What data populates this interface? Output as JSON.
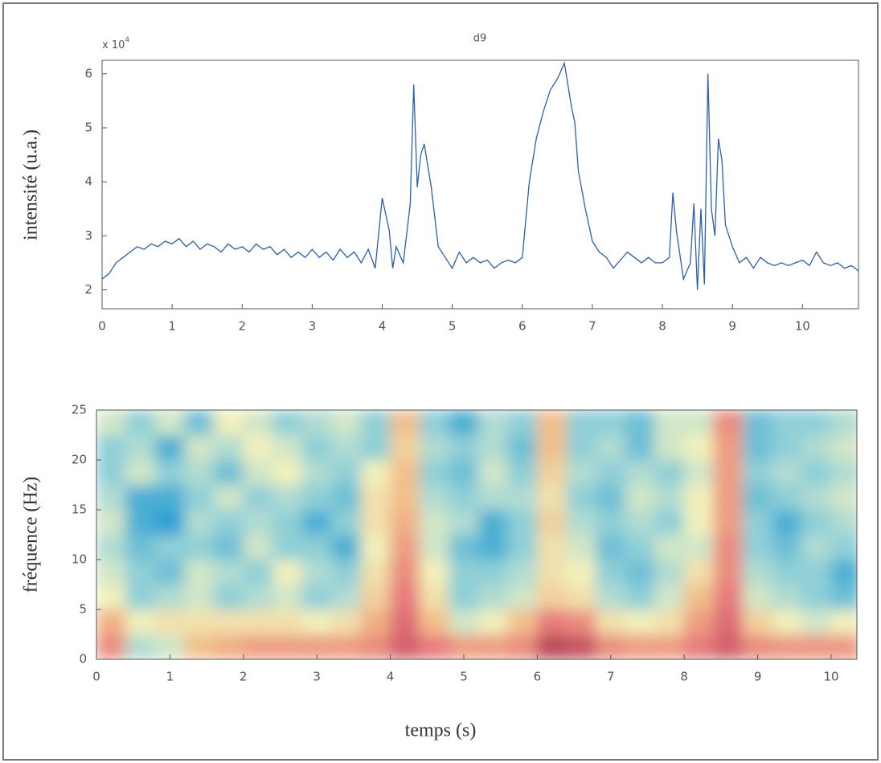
{
  "chart_data": [
    {
      "type": "line",
      "title": "d9",
      "y_label": "intensité (u.a.)",
      "y_multiplier": {
        "base": "x 10",
        "exponent": "4"
      },
      "x": [
        0,
        0.1,
        0.2,
        0.3,
        0.4,
        0.5,
        0.6,
        0.7,
        0.8,
        0.9,
        1.0,
        1.1,
        1.2,
        1.3,
        1.4,
        1.5,
        1.6,
        1.7,
        1.8,
        1.9,
        2.0,
        2.1,
        2.2,
        2.3,
        2.4,
        2.5,
        2.6,
        2.7,
        2.8,
        2.9,
        3.0,
        3.1,
        3.2,
        3.3,
        3.4,
        3.5,
        3.6,
        3.7,
        3.8,
        3.9,
        4.0,
        4.1,
        4.15,
        4.2,
        4.3,
        4.4,
        4.45,
        4.5,
        4.55,
        4.6,
        4.7,
        4.8,
        4.9,
        5.0,
        5.1,
        5.2,
        5.3,
        5.4,
        5.5,
        5.6,
        5.7,
        5.8,
        5.9,
        6.0,
        6.1,
        6.2,
        6.3,
        6.4,
        6.5,
        6.6,
        6.7,
        6.75,
        6.8,
        6.9,
        7.0,
        7.1,
        7.2,
        7.3,
        7.4,
        7.5,
        7.6,
        7.7,
        7.8,
        7.9,
        8.0,
        8.1,
        8.15,
        8.2,
        8.3,
        8.4,
        8.45,
        8.5,
        8.55,
        8.6,
        8.65,
        8.7,
        8.75,
        8.8,
        8.85,
        8.9,
        9.0,
        9.1,
        9.2,
        9.3,
        9.4,
        9.5,
        9.6,
        9.7,
        9.8,
        9.9,
        10.0,
        10.1,
        10.2,
        10.3,
        10.4,
        10.5,
        10.6,
        10.7,
        10.8
      ],
      "series": [
        {
          "color": "#2c5fa8",
          "values": [
            2.2,
            2.3,
            2.5,
            2.6,
            2.7,
            2.8,
            2.75,
            2.85,
            2.8,
            2.9,
            2.85,
            2.95,
            2.8,
            2.9,
            2.75,
            2.85,
            2.8,
            2.7,
            2.85,
            2.75,
            2.8,
            2.7,
            2.85,
            2.75,
            2.8,
            2.65,
            2.75,
            2.6,
            2.7,
            2.6,
            2.75,
            2.6,
            2.7,
            2.55,
            2.75,
            2.6,
            2.7,
            2.5,
            2.75,
            2.4,
            3.7,
            3.1,
            2.4,
            2.8,
            2.5,
            3.6,
            5.8,
            3.9,
            4.5,
            4.7,
            3.9,
            2.8,
            2.6,
            2.4,
            2.7,
            2.5,
            2.6,
            2.5,
            2.55,
            2.4,
            2.5,
            2.55,
            2.5,
            2.6,
            4.0,
            4.8,
            5.3,
            5.7,
            5.9,
            6.2,
            5.4,
            5.1,
            4.2,
            3.5,
            2.9,
            2.7,
            2.6,
            2.4,
            2.55,
            2.7,
            2.6,
            2.5,
            2.6,
            2.5,
            2.5,
            2.6,
            3.8,
            3.1,
            2.2,
            2.5,
            3.6,
            2.0,
            3.5,
            2.1,
            6.0,
            3.5,
            3.0,
            4.8,
            4.4,
            3.2,
            2.8,
            2.5,
            2.6,
            2.4,
            2.6,
            2.5,
            2.45,
            2.5,
            2.45,
            2.5,
            2.55,
            2.45,
            2.7,
            2.5,
            2.45,
            2.5,
            2.4,
            2.45,
            2.35
          ]
        }
      ],
      "xlim": [
        0,
        10.8
      ],
      "ylim": [
        1.65,
        6.25
      ],
      "xticks": [
        0,
        1,
        2,
        3,
        4,
        5,
        6,
        7,
        8,
        9,
        10
      ],
      "yticks": [
        2,
        3,
        4,
        5,
        6
      ]
    },
    {
      "type": "heatmap",
      "y_label": "fréquence (Hz)",
      "x_label": "temps (s)",
      "x_bins": [
        0,
        0.4,
        0.8,
        1.2,
        1.6,
        2.0,
        2.4,
        2.8,
        3.2,
        3.6,
        4.0,
        4.4,
        4.8,
        5.2,
        5.6,
        6.0,
        6.4,
        6.8,
        7.2,
        7.6,
        8.0,
        8.4,
        8.8,
        9.2,
        9.6,
        10.0,
        10.4
      ],
      "y_bins": [
        0,
        2.5,
        5,
        7.5,
        10,
        12.5,
        15,
        17.5,
        20,
        22.5,
        25
      ],
      "z": [
        [
          0.75,
          0.35,
          0.4,
          0.6,
          0.65,
          0.7,
          0.7,
          0.7,
          0.7,
          0.75,
          0.9,
          0.8,
          0.7,
          0.7,
          0.75,
          1.0,
          0.95,
          0.75,
          0.7,
          0.7,
          0.8,
          0.9,
          0.75,
          0.72,
          0.72,
          0.72
        ],
        [
          0.65,
          0.45,
          0.5,
          0.5,
          0.5,
          0.5,
          0.5,
          0.45,
          0.5,
          0.65,
          0.85,
          0.6,
          0.4,
          0.45,
          0.6,
          0.8,
          0.75,
          0.5,
          0.45,
          0.5,
          0.7,
          0.85,
          0.55,
          0.45,
          0.4,
          0.45
        ],
        [
          0.45,
          0.3,
          0.35,
          0.4,
          0.3,
          0.35,
          0.4,
          0.3,
          0.35,
          0.55,
          0.8,
          0.5,
          0.3,
          0.35,
          0.4,
          0.55,
          0.5,
          0.35,
          0.3,
          0.4,
          0.6,
          0.8,
          0.4,
          0.35,
          0.3,
          0.25
        ],
        [
          0.4,
          0.3,
          0.25,
          0.4,
          0.35,
          0.3,
          0.45,
          0.35,
          0.3,
          0.5,
          0.75,
          0.45,
          0.3,
          0.3,
          0.35,
          0.5,
          0.45,
          0.3,
          0.25,
          0.35,
          0.5,
          0.75,
          0.35,
          0.3,
          0.3,
          0.2
        ],
        [
          0.35,
          0.25,
          0.3,
          0.3,
          0.25,
          0.4,
          0.3,
          0.3,
          0.2,
          0.45,
          0.7,
          0.4,
          0.25,
          0.2,
          0.3,
          0.5,
          0.4,
          0.25,
          0.3,
          0.4,
          0.4,
          0.75,
          0.3,
          0.25,
          0.35,
          0.3
        ],
        [
          0.4,
          0.2,
          0.15,
          0.35,
          0.3,
          0.35,
          0.3,
          0.2,
          0.3,
          0.5,
          0.65,
          0.4,
          0.35,
          0.2,
          0.3,
          0.55,
          0.35,
          0.3,
          0.35,
          0.3,
          0.45,
          0.7,
          0.3,
          0.2,
          0.3,
          0.35
        ],
        [
          0.35,
          0.2,
          0.2,
          0.3,
          0.4,
          0.3,
          0.35,
          0.3,
          0.25,
          0.5,
          0.6,
          0.35,
          0.3,
          0.35,
          0.35,
          0.5,
          0.3,
          0.25,
          0.4,
          0.35,
          0.45,
          0.7,
          0.25,
          0.3,
          0.35,
          0.4
        ],
        [
          0.3,
          0.4,
          0.3,
          0.35,
          0.25,
          0.4,
          0.45,
          0.35,
          0.3,
          0.45,
          0.6,
          0.3,
          0.25,
          0.4,
          0.3,
          0.55,
          0.35,
          0.3,
          0.35,
          0.3,
          0.4,
          0.7,
          0.3,
          0.35,
          0.3,
          0.35
        ],
        [
          0.3,
          0.35,
          0.2,
          0.4,
          0.35,
          0.45,
          0.4,
          0.3,
          0.35,
          0.3,
          0.55,
          0.35,
          0.3,
          0.35,
          0.25,
          0.6,
          0.3,
          0.35,
          0.25,
          0.4,
          0.45,
          0.7,
          0.25,
          0.3,
          0.35,
          0.4
        ],
        [
          0.4,
          0.3,
          0.4,
          0.25,
          0.45,
          0.4,
          0.3,
          0.35,
          0.4,
          0.3,
          0.6,
          0.3,
          0.2,
          0.35,
          0.3,
          0.6,
          0.3,
          0.3,
          0.25,
          0.4,
          0.4,
          0.75,
          0.25,
          0.3,
          0.3,
          0.35
        ]
      ],
      "colorscale": [
        [
          0.15,
          "#2a9fd3"
        ],
        [
          0.32,
          "#9dd5d8"
        ],
        [
          0.45,
          "#f2f0bc"
        ],
        [
          0.62,
          "#f2b985"
        ],
        [
          0.82,
          "#e6737c"
        ],
        [
          1.0,
          "#b84a57"
        ]
      ],
      "xlim": [
        0,
        10.35
      ],
      "ylim": [
        0,
        25
      ],
      "xticks": [
        0,
        1,
        2,
        3,
        4,
        5,
        6,
        7,
        8,
        9,
        10
      ],
      "yticks": [
        0,
        5,
        10,
        15,
        20,
        25
      ]
    }
  ]
}
